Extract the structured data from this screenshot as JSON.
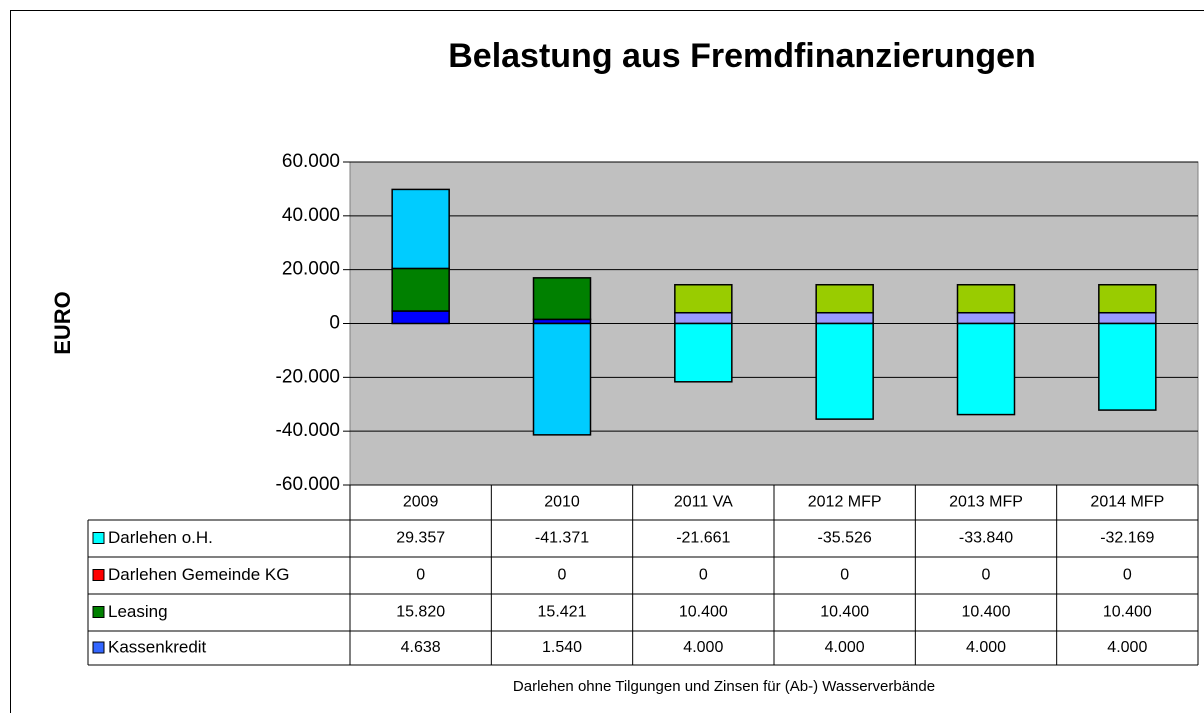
{
  "chart_data": {
    "type": "bar",
    "stacked": true,
    "title": "Belastung aus Fremdfinanzierungen",
    "y_label": "EURO",
    "note": "Darlehen ohne Tilgungen und Zinsen für (Ab-) Wasserverbände",
    "categories": [
      "2009",
      "2010",
      "2011 VA",
      "2012 MFP",
      "2013 MFP",
      "2014 MFP"
    ],
    "ylim": [
      -60000,
      60000
    ],
    "yticks": [
      {
        "value": 60000,
        "label": "60.000"
      },
      {
        "value": 40000,
        "label": "40.000"
      },
      {
        "value": 20000,
        "label": "20.000"
      },
      0,
      {
        "value": -20000,
        "label": "-20.000"
      },
      {
        "value": -40000,
        "label": "-40.000"
      },
      {
        "value": -60000,
        "label": "-60.000"
      }
    ],
    "grid": true,
    "plot_background": "#c0c0c0",
    "series": [
      {
        "name": "Darlehen o.H.",
        "color": "#00ffff",
        "colors": [
          "#00ccff",
          "#00ccff",
          "#00ffff",
          "#00ffff",
          "#00ffff",
          "#00ffff"
        ],
        "values": [
          29357,
          -41371,
          -21661,
          -35526,
          -33840,
          -32169
        ],
        "value_labels": [
          "29.357",
          "-41.371",
          "-21.661",
          "-35.526",
          "-33.840",
          "-32.169"
        ]
      },
      {
        "name": "Darlehen Gemeinde KG",
        "color": "#ff0000",
        "colors": [
          "#ff0000",
          "#ff0000",
          "#ff0000",
          "#ff0000",
          "#ff0000",
          "#ff0000"
        ],
        "values": [
          0,
          0,
          0,
          0,
          0,
          0
        ],
        "value_labels": [
          "0",
          "0",
          "0",
          "0",
          "0",
          "0"
        ]
      },
      {
        "name": "Leasing",
        "color": "#008000",
        "colors": [
          "#008000",
          "#008000",
          "#99cc00",
          "#99cc00",
          "#99cc00",
          "#99cc00"
        ],
        "values": [
          15820,
          15421,
          10400,
          10400,
          10400,
          10400
        ],
        "value_labels": [
          "15.820",
          "15.421",
          "10.400",
          "10.400",
          "10.400",
          "10.400"
        ]
      },
      {
        "name": "Kassenkredit",
        "color": "#3366ff",
        "colors": [
          "#0000ff",
          "#0000ff",
          "#9999ff",
          "#9999ff",
          "#9999ff",
          "#9999ff"
        ],
        "values": [
          4638,
          1540,
          4000,
          4000,
          4000,
          4000
        ],
        "value_labels": [
          "4.638",
          "1.540",
          "4.000",
          "4.000",
          "4.000",
          "4.000"
        ]
      }
    ]
  }
}
